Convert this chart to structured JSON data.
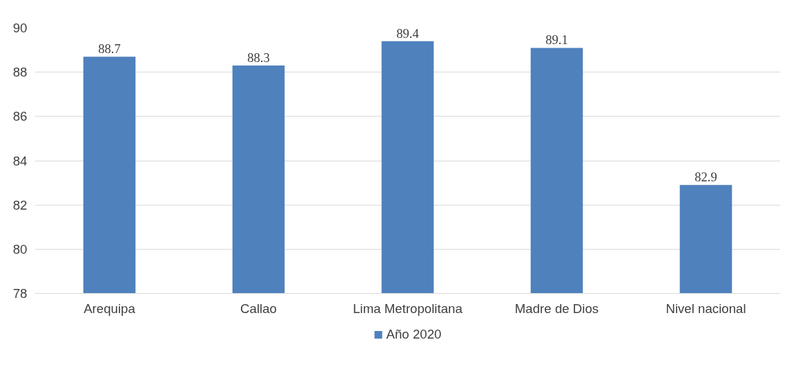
{
  "chart_data": {
    "type": "bar",
    "categories": [
      "Arequipa",
      "Callao",
      "Lima Metropolitana",
      "Madre de Dios",
      "Nivel nacional"
    ],
    "series": [
      {
        "name": "Año 2020",
        "color": "#4f81bd",
        "values": [
          88.7,
          88.3,
          89.4,
          89.1,
          82.9
        ]
      }
    ],
    "ylim": [
      78,
      90
    ],
    "yticks": [
      78,
      80,
      82,
      84,
      86,
      88,
      90
    ],
    "grid": "y",
    "legend": "bottom",
    "data_labels": true
  }
}
